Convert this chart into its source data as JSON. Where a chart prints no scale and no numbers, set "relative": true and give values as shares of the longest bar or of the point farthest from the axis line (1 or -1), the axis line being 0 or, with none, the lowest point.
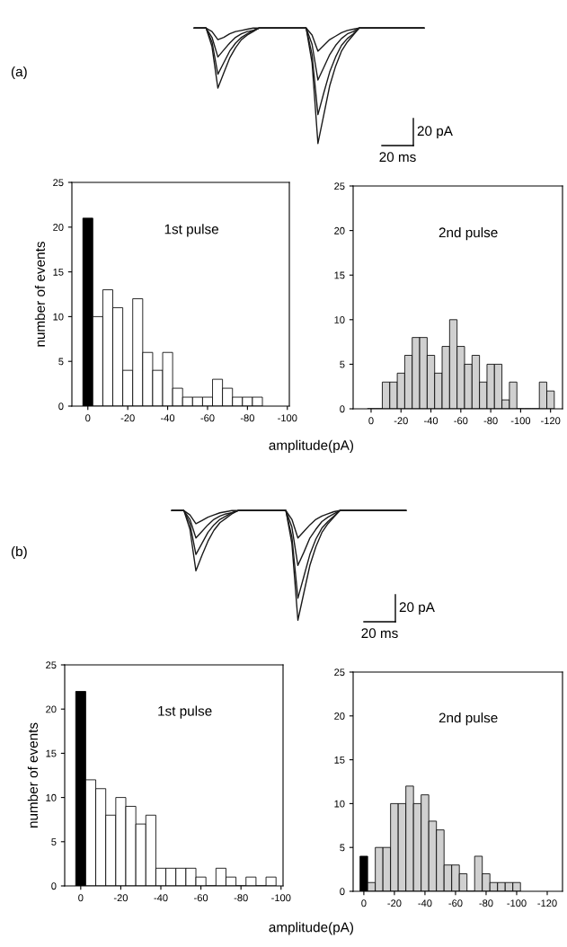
{
  "chart_data": [
    {
      "type": "line",
      "relative": true,
      "annotations": [
        "(a)",
        "20 pA",
        "20 ms"
      ],
      "categories": [
        null,
        null,
        null,
        null,
        null,
        null,
        null,
        null,
        null,
        null,
        null,
        null,
        null,
        null,
        null,
        null,
        null,
        null,
        null,
        null,
        null,
        null,
        null,
        null,
        null,
        null,
        null,
        null,
        null,
        null,
        null,
        null,
        null,
        null,
        null,
        null,
        null,
        null,
        null,
        null
      ],
      "series": [
        {
          "color": "#1a1a1a",
          "values": [
            1,
            1,
            1,
            0.84,
            0.48,
            0.61,
            0.74,
            0.83,
            0.9,
            0.94,
            0.97,
            1,
            1,
            1,
            1,
            1,
            1,
            1,
            1,
            1,
            0.7,
            0,
            0.25,
            0.5,
            0.67,
            0.8,
            0.88,
            0.94,
            1,
            1,
            1,
            1,
            1,
            1,
            1,
            1,
            1,
            1,
            1,
            1
          ]
        },
        {
          "color": "#1a1a1a",
          "values": [
            1,
            1,
            1,
            0.88,
            0.6,
            0.7,
            0.8,
            0.87,
            0.92,
            0.95,
            0.98,
            1,
            1,
            1,
            1,
            1,
            1,
            1,
            1,
            1,
            0.77,
            0.25,
            0.44,
            0.62,
            0.75,
            0.85,
            0.91,
            0.95,
            1,
            1,
            1,
            1,
            1,
            1,
            1,
            1,
            1,
            1,
            1,
            1
          ]
        },
        {
          "color": "#1a1a1a",
          "values": [
            1,
            1,
            1,
            0.92,
            0.75,
            0.81,
            0.87,
            0.92,
            0.95,
            0.97,
            0.98,
            1,
            1,
            1,
            1,
            1,
            1,
            1,
            1,
            1,
            0.86,
            0.55,
            0.66,
            0.77,
            0.85,
            0.91,
            0.95,
            0.97,
            1,
            1,
            1,
            1,
            1,
            1,
            1,
            1,
            1,
            1,
            1,
            1
          ]
        },
        {
          "color": "#1a1a1a",
          "values": [
            1,
            1,
            1,
            0.97,
            0.9,
            0.92,
            0.95,
            0.97,
            0.98,
            0.99,
            1,
            1,
            1,
            1,
            1,
            1,
            1,
            1,
            1,
            1,
            0.94,
            0.8,
            0.85,
            0.9,
            0.93,
            0.96,
            0.98,
            0.99,
            1,
            1,
            1,
            1,
            1,
            1,
            1,
            1,
            1,
            1,
            1,
            1
          ]
        }
      ]
    },
    {
      "type": "histogram",
      "ylabel": "number of events",
      "annotations": [
        "1st pulse"
      ],
      "bins": [
        2.5,
        -2.5,
        -7.5,
        -12.5,
        -17.5,
        -22.5,
        -27.5,
        -32.5,
        -37.5,
        -42.5,
        -47.5,
        -52.5,
        -57.5,
        -62.5,
        -67.5,
        -72.5,
        -77.5,
        -82.5,
        -87.5
      ],
      "values": [
        21,
        10,
        13,
        11,
        4,
        12,
        6,
        4,
        6,
        2,
        1,
        1,
        1,
        3,
        2,
        1,
        1,
        1
      ],
      "colors": [
        "#000000",
        "#ffffff",
        "#ffffff",
        "#ffffff",
        "#ffffff",
        "#ffffff",
        "#ffffff",
        "#ffffff",
        "#ffffff",
        "#ffffff",
        "#ffffff",
        "#ffffff",
        "#ffffff",
        "#ffffff",
        "#ffffff",
        "#ffffff",
        "#ffffff",
        "#ffffff"
      ],
      "xlim": [
        8,
        -101
      ],
      "xticks": [
        0,
        -20,
        -40,
        -60,
        -80,
        -100
      ],
      "ylim": [
        0,
        25
      ],
      "yticks": [
        0,
        5,
        10,
        15,
        20,
        25
      ]
    },
    {
      "type": "histogram",
      "xlabel": "amplitude(pA)",
      "annotations": [
        "2nd pulse"
      ],
      "bins": [
        2.5,
        -2.5,
        -7.5,
        -12.5,
        -17.5,
        -22.5,
        -27.5,
        -32.5,
        -37.5,
        -42.5,
        -47.5,
        -52.5,
        -57.5,
        -62.5,
        -67.5,
        -72.5,
        -77.5,
        -82.5,
        -87.5,
        -92.5,
        -97.5,
        -102.5,
        -107.5,
        -112.5,
        -117.5,
        -122.5
      ],
      "values": [
        0,
        0,
        3,
        3,
        4,
        6,
        8,
        8,
        6,
        4,
        7,
        10,
        7,
        5,
        6,
        3,
        5,
        5,
        1,
        3,
        0,
        0,
        0,
        3,
        2
      ],
      "colors": [
        "#d0d0d0",
        "#d0d0d0",
        "#d0d0d0",
        "#d0d0d0",
        "#d0d0d0",
        "#d0d0d0",
        "#d0d0d0",
        "#d0d0d0",
        "#d0d0d0",
        "#d0d0d0",
        "#d0d0d0",
        "#d0d0d0",
        "#d0d0d0",
        "#d0d0d0",
        "#d0d0d0",
        "#d0d0d0",
        "#d0d0d0",
        "#d0d0d0",
        "#d0d0d0",
        "#d0d0d0",
        "#d0d0d0",
        "#d0d0d0",
        "#d0d0d0",
        "#d0d0d0",
        "#d0d0d0"
      ],
      "xlim": [
        12,
        -128
      ],
      "xticks": [
        0,
        -20,
        -40,
        -60,
        -80,
        -100,
        -120
      ],
      "ylim": [
        0,
        25
      ],
      "yticks": [
        0,
        5,
        10,
        15,
        20,
        25
      ]
    },
    {
      "type": "line",
      "relative": true,
      "annotations": [
        "(b)",
        "20 pA",
        "20 ms"
      ],
      "categories": [
        null,
        null,
        null,
        null,
        null,
        null,
        null,
        null,
        null,
        null,
        null,
        null,
        null,
        null,
        null,
        null,
        null,
        null,
        null,
        null,
        null,
        null,
        null,
        null,
        null,
        null,
        null,
        null,
        null,
        null,
        null,
        null,
        null,
        null,
        null,
        null,
        null,
        null,
        null,
        null
      ],
      "series": [
        {
          "color": "#1a1a1a",
          "values": [
            1,
            1,
            1,
            0.83,
            0.45,
            0.59,
            0.72,
            0.82,
            0.89,
            0.93,
            0.97,
            1,
            1,
            1,
            1,
            1,
            1,
            1,
            1,
            1,
            0.7,
            0,
            0.25,
            0.5,
            0.67,
            0.8,
            0.88,
            0.94,
            1,
            1,
            1,
            1,
            1,
            1,
            1,
            1,
            1,
            1,
            1,
            1
          ]
        },
        {
          "color": "#1a1a1a",
          "values": [
            1,
            1,
            1,
            0.88,
            0.6,
            0.7,
            0.8,
            0.87,
            0.92,
            0.95,
            0.98,
            1,
            1,
            1,
            1,
            1,
            1,
            1,
            1,
            1,
            0.76,
            0.2,
            0.4,
            0.6,
            0.74,
            0.84,
            0.9,
            0.95,
            1,
            1,
            1,
            1,
            1,
            1,
            1,
            1,
            1,
            1,
            1,
            1
          ]
        },
        {
          "color": "#1a1a1a",
          "values": [
            1,
            1,
            1,
            0.92,
            0.75,
            0.81,
            0.87,
            0.92,
            0.95,
            0.97,
            0.98,
            1,
            1,
            1,
            1,
            1,
            1,
            1,
            1,
            1,
            0.85,
            0.5,
            0.62,
            0.75,
            0.83,
            0.9,
            0.94,
            0.97,
            1,
            1,
            1,
            1,
            1,
            1,
            1,
            1,
            1,
            1,
            1,
            1
          ]
        },
        {
          "color": "#1a1a1a",
          "values": [
            1,
            1,
            1,
            0.96,
            0.88,
            0.91,
            0.94,
            0.96,
            0.98,
            0.99,
            1,
            1,
            1,
            1,
            1,
            1,
            1,
            1,
            1,
            1,
            0.92,
            0.75,
            0.81,
            0.87,
            0.92,
            0.95,
            0.97,
            0.99,
            1,
            1,
            1,
            1,
            1,
            1,
            1,
            1,
            1,
            1,
            1,
            1
          ]
        }
      ]
    },
    {
      "type": "histogram",
      "ylabel": "number of events",
      "annotations": [
        "1st pulse"
      ],
      "bins": [
        2.5,
        -2.5,
        -7.5,
        -12.5,
        -17.5,
        -22.5,
        -27.5,
        -32.5,
        -37.5,
        -42.5,
        -47.5,
        -52.5,
        -57.5,
        -62.5,
        -67.5,
        -72.5,
        -77.5,
        -82.5,
        -87.5,
        -92.5,
        -97.5
      ],
      "values": [
        22,
        12,
        11,
        8,
        10,
        9,
        7,
        8,
        2,
        2,
        2,
        2,
        1,
        0,
        2,
        1,
        0,
        1,
        0,
        1
      ],
      "colors": [
        "#000000",
        "#ffffff",
        "#ffffff",
        "#ffffff",
        "#ffffff",
        "#ffffff",
        "#ffffff",
        "#ffffff",
        "#ffffff",
        "#ffffff",
        "#ffffff",
        "#ffffff",
        "#ffffff",
        "#ffffff",
        "#ffffff",
        "#ffffff",
        "#ffffff",
        "#ffffff",
        "#ffffff",
        "#ffffff"
      ],
      "xlim": [
        8,
        -101
      ],
      "xticks": [
        0,
        -20,
        -40,
        -60,
        -80,
        -100
      ],
      "ylim": [
        0,
        25
      ],
      "yticks": [
        0,
        5,
        10,
        15,
        20,
        25
      ]
    },
    {
      "type": "histogram",
      "xlabel": "amplitude(pA)",
      "annotations": [
        "2nd pulse"
      ],
      "bins": [
        2.5,
        -2.5,
        -7.5,
        -12.5,
        -17.5,
        -22.5,
        -27.5,
        -32.5,
        -37.5,
        -42.5,
        -47.5,
        -52.5,
        -57.5,
        -62.5,
        -67.5,
        -72.5,
        -77.5,
        -82.5,
        -87.5,
        -92.5,
        -97.5,
        -102.5
      ],
      "values": [
        4,
        1,
        5,
        5,
        10,
        10,
        12,
        10,
        11,
        8,
        7,
        3,
        3,
        2,
        0,
        4,
        2,
        1,
        1,
        1,
        1
      ],
      "colors": [
        "#000000",
        "#d0d0d0",
        "#d0d0d0",
        "#d0d0d0",
        "#d0d0d0",
        "#d0d0d0",
        "#d0d0d0",
        "#d0d0d0",
        "#d0d0d0",
        "#d0d0d0",
        "#d0d0d0",
        "#d0d0d0",
        "#d0d0d0",
        "#d0d0d0",
        "#d0d0d0",
        "#d0d0d0",
        "#d0d0d0",
        "#d0d0d0",
        "#d0d0d0",
        "#d0d0d0",
        "#d0d0d0"
      ],
      "xlim": [
        7,
        -130
      ],
      "xticks": [
        0,
        -20,
        -40,
        -60,
        -80,
        -100,
        -120
      ],
      "ylim": [
        0,
        25
      ],
      "yticks": [
        0,
        5,
        10,
        15,
        20,
        25
      ]
    }
  ]
}
